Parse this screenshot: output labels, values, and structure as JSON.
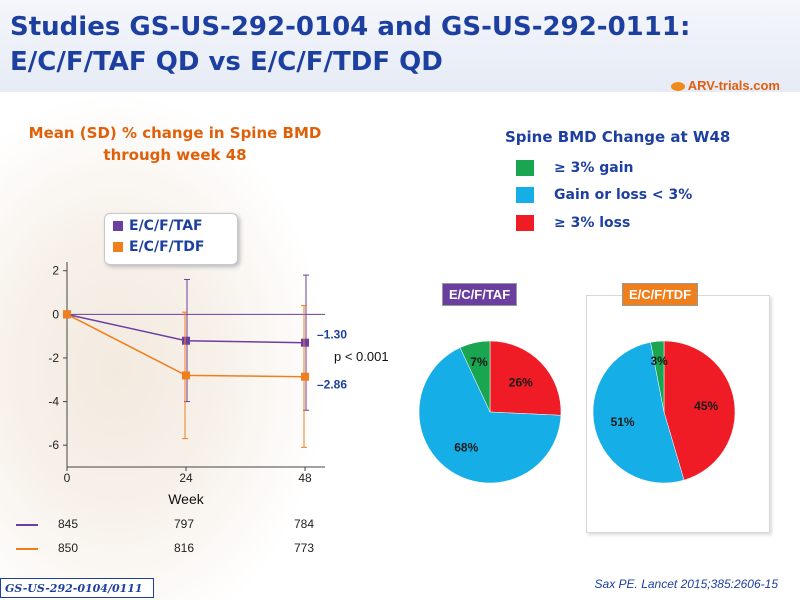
{
  "title": {
    "line1": "Studies GS-US-292-0104 and GS-US-292-0111:",
    "line2": "E/C/F/TAF QD vs E/C/F/TDF QD"
  },
  "logo_text": "ARV-trials.com",
  "colors": {
    "taf": "#6b3fa0",
    "tdf": "#f07f1b",
    "gain": "#1aa550",
    "small_change": "#15aee6",
    "loss": "#ef1c25",
    "title_blue": "#1d3fa0"
  },
  "line_chart": {
    "title_line1": "Mean (SD) % change in Spine BMD",
    "title_line2": "through week 48",
    "legend": [
      "E/C/F/TAF",
      "E/C/F/TDF"
    ],
    "end_labels": [
      "–1.30",
      "–2.86"
    ],
    "pvalue": "p < 0.001",
    "xlabel": "Week",
    "n_rows": [
      {
        "values": [
          "845",
          "797",
          "784"
        ]
      },
      {
        "values": [
          "850",
          "816",
          "773"
        ]
      }
    ]
  },
  "chart_data": [
    {
      "type": "line",
      "title": "Mean (SD) % change in Spine BMD through week 48",
      "xlabel": "Week",
      "ylabel": "",
      "x": [
        0,
        24,
        48
      ],
      "xticks": [
        "0",
        "24",
        "48"
      ],
      "ylim": [
        -7,
        2.4
      ],
      "yticks": [
        "2",
        "0",
        "-2",
        "-4",
        "-6"
      ],
      "series": [
        {
          "name": "E/C/F/TAF",
          "values": [
            0,
            -1.21,
            -1.3
          ],
          "sd_upper": [
            0,
            1.6,
            1.8
          ],
          "sd_lower": [
            0,
            -4.0,
            -4.4
          ]
        },
        {
          "name": "E/C/F/TDF",
          "values": [
            0,
            -2.8,
            -2.86
          ],
          "sd_upper": [
            0,
            0.1,
            0.4
          ],
          "sd_lower": [
            0,
            -5.7,
            -6.1
          ]
        }
      ]
    },
    {
      "type": "pie",
      "title": "Spine BMD Change at W48",
      "categories": [
        "≥ 3% gain",
        "Gain or loss < 3%",
        "≥ 3% loss"
      ],
      "pies": [
        {
          "name": "E/C/F/TAF",
          "values": [
            7,
            68,
            26
          ],
          "labels": [
            "7%",
            "68%",
            "26%"
          ]
        },
        {
          "name": "E/C/F/TDF",
          "values": [
            3,
            51,
            45
          ],
          "labels": [
            "3%",
            "51%",
            "45%"
          ]
        }
      ]
    }
  ],
  "footer": {
    "study_tag": "GS-US-292-0104/0111",
    "citation": "Sax PE. Lancet 2015;385:2606-15"
  }
}
